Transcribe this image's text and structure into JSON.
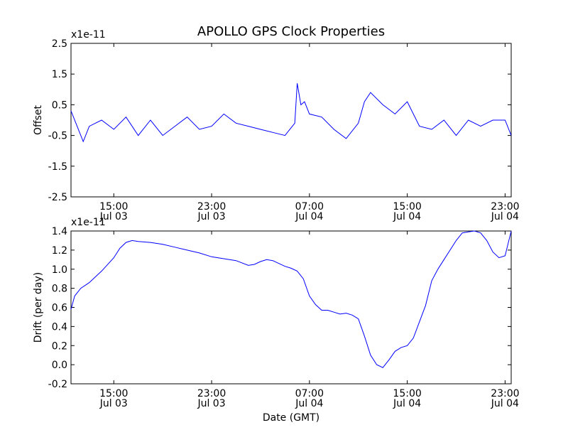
{
  "chart_data": [
    {
      "type": "line",
      "title": "APOLLO GPS Clock Properties",
      "xlabel": "",
      "ylabel": "Offset",
      "scale_label": "x1e-11",
      "ylim": [
        -2.5,
        2.5
      ],
      "yticks": [
        "2.5",
        "1.5",
        "0.5",
        "-0.5",
        "-1.5",
        "-2.5"
      ],
      "xlim_hours": [
        11.5,
        47.5
      ],
      "xticks": [
        {
          "time": "15:00",
          "date": "Jul 03"
        },
        {
          "time": "23:00",
          "date": "Jul 03"
        },
        {
          "time": "07:00",
          "date": "Jul 04"
        },
        {
          "time": "15:00",
          "date": "Jul 04"
        },
        {
          "time": "23:00",
          "date": "Jul 04"
        }
      ],
      "series_color": "#0000ff",
      "x": [
        11.5,
        12.0,
        12.5,
        13.0,
        14.0,
        15.0,
        16.0,
        17.0,
        18.0,
        19.0,
        20.0,
        21.0,
        22.0,
        23.0,
        24.0,
        25.0,
        26.0,
        27.0,
        28.0,
        29.0,
        29.8,
        30.0,
        30.3,
        30.6,
        31.0,
        32.0,
        33.0,
        34.0,
        35.0,
        35.5,
        36.0,
        37.0,
        38.0,
        39.0,
        40.0,
        41.0,
        42.0,
        43.0,
        44.0,
        45.0,
        46.0,
        47.0,
        47.5
      ],
      "values": [
        0.3,
        -0.2,
        -0.7,
        -0.2,
        0.0,
        -0.3,
        0.1,
        -0.5,
        0.0,
        -0.5,
        -0.2,
        0.1,
        -0.3,
        -0.2,
        0.2,
        -0.1,
        -0.2,
        -0.3,
        -0.4,
        -0.5,
        -0.1,
        1.2,
        0.5,
        0.6,
        0.2,
        0.1,
        -0.3,
        -0.6,
        -0.1,
        0.6,
        0.9,
        0.5,
        0.2,
        0.6,
        -0.2,
        -0.3,
        0.0,
        -0.5,
        0.0,
        -0.2,
        0.0,
        0.0,
        -0.5
      ]
    },
    {
      "type": "line",
      "title": "",
      "xlabel": "Date (GMT)",
      "ylabel": "Drift (per day)",
      "scale_label": "x1e-11",
      "ylim": [
        -0.2,
        1.4
      ],
      "yticks": [
        "1.4",
        "1.2",
        "1.0",
        "0.8",
        "0.6",
        "0.4",
        "0.2",
        "0.0",
        "-0.2"
      ],
      "xlim_hours": [
        11.5,
        47.5
      ],
      "xticks": [
        {
          "time": "15:00",
          "date": "Jul 03"
        },
        {
          "time": "23:00",
          "date": "Jul 03"
        },
        {
          "time": "07:00",
          "date": "Jul 04"
        },
        {
          "time": "15:00",
          "date": "Jul 04"
        },
        {
          "time": "23:00",
          "date": "Jul 04"
        }
      ],
      "series_color": "#0000ff",
      "x": [
        11.5,
        11.8,
        12.3,
        13.0,
        13.5,
        14.0,
        15.0,
        15.5,
        16.0,
        16.5,
        17.0,
        18.0,
        19.0,
        20.0,
        21.0,
        22.0,
        23.0,
        24.0,
        25.0,
        26.0,
        26.5,
        27.0,
        27.5,
        28.0,
        28.5,
        29.0,
        29.5,
        30.0,
        30.5,
        31.0,
        31.5,
        32.0,
        32.5,
        33.0,
        33.5,
        34.0,
        34.5,
        35.0,
        35.5,
        36.0,
        36.5,
        37.0,
        37.5,
        38.0,
        38.5,
        39.0,
        39.5,
        40.0,
        40.5,
        41.0,
        41.5,
        42.0,
        42.5,
        43.0,
        43.5,
        44.0,
        44.5,
        45.0,
        45.5,
        46.0,
        46.5,
        47.0,
        47.5
      ],
      "values": [
        0.58,
        0.72,
        0.8,
        0.86,
        0.92,
        0.98,
        1.12,
        1.22,
        1.28,
        1.3,
        1.29,
        1.28,
        1.26,
        1.23,
        1.2,
        1.17,
        1.13,
        1.11,
        1.09,
        1.04,
        1.05,
        1.08,
        1.1,
        1.09,
        1.06,
        1.03,
        1.01,
        0.98,
        0.9,
        0.72,
        0.63,
        0.57,
        0.57,
        0.55,
        0.53,
        0.54,
        0.52,
        0.48,
        0.3,
        0.1,
        0.0,
        -0.03,
        0.05,
        0.14,
        0.18,
        0.2,
        0.28,
        0.45,
        0.62,
        0.88,
        1.0,
        1.1,
        1.2,
        1.3,
        1.38,
        1.39,
        1.4,
        1.38,
        1.3,
        1.18,
        1.12,
        1.14,
        1.42
      ]
    }
  ]
}
